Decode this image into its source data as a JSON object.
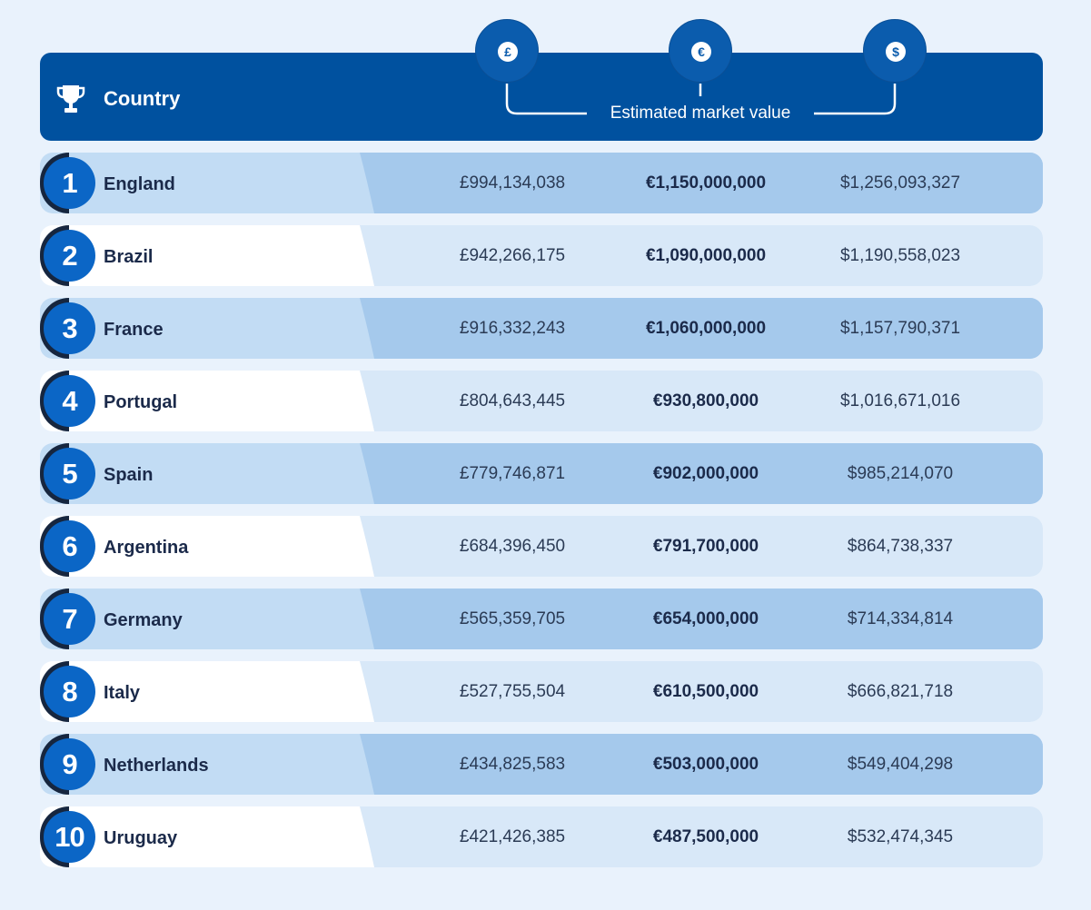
{
  "header": {
    "country_label": "Country",
    "estimated_label": "Estimated market value",
    "currencies": [
      "£",
      "€",
      "$"
    ]
  },
  "colors": {
    "header_bg": "#00519f",
    "rank_circle": "#0b66c6",
    "row_odd_left": "#c2dcf4",
    "row_odd_right": "#a5c9ec",
    "row_even_left": "#ffffff",
    "row_even_right": "#d8e8f8"
  },
  "rows": [
    {
      "rank": "1",
      "country": "England",
      "gbp": "£994,134,038",
      "eur": "€1,150,000,000",
      "usd": "$1,256,093,327"
    },
    {
      "rank": "2",
      "country": "Brazil",
      "gbp": "£942,266,175",
      "eur": "€1,090,000,000",
      "usd": "$1,190,558,023"
    },
    {
      "rank": "3",
      "country": "France",
      "gbp": "£916,332,243",
      "eur": "€1,060,000,000",
      "usd": "$1,157,790,371"
    },
    {
      "rank": "4",
      "country": "Portugal",
      "gbp": "£804,643,445",
      "eur": "€930,800,000",
      "usd": "$1,016,671,016"
    },
    {
      "rank": "5",
      "country": "Spain",
      "gbp": "£779,746,871",
      "eur": "€902,000,000",
      "usd": "$985,214,070"
    },
    {
      "rank": "6",
      "country": "Argentina",
      "gbp": "£684,396,450",
      "eur": "€791,700,000",
      "usd": "$864,738,337"
    },
    {
      "rank": "7",
      "country": "Germany",
      "gbp": "£565,359,705",
      "eur": "€654,000,000",
      "usd": "$714,334,814"
    },
    {
      "rank": "8",
      "country": "Italy",
      "gbp": "£527,755,504",
      "eur": "€610,500,000",
      "usd": "$666,821,718"
    },
    {
      "rank": "9",
      "country": "Netherlands",
      "gbp": "£434,825,583",
      "eur": "€503,000,000",
      "usd": "$549,404,298"
    },
    {
      "rank": "10",
      "country": "Uruguay",
      "gbp": "£421,426,385",
      "eur": "€487,500,000",
      "usd": "$532,474,345"
    }
  ]
}
